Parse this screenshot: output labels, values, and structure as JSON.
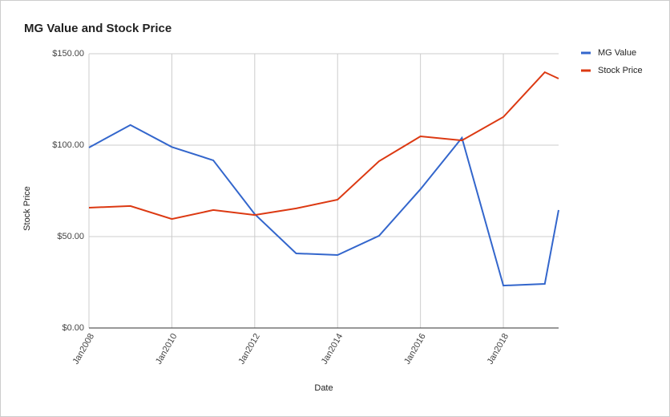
{
  "chart_data": {
    "type": "line",
    "title": "MG Value and Stock Price",
    "x_label": "Date",
    "y_label": "Stock Price",
    "x": [
      "2008-01",
      "2009-01",
      "2010-01",
      "2011-01",
      "2012-01",
      "2013-01",
      "2014-01",
      "2015-01",
      "2016-01",
      "2017-01",
      "2018-01",
      "2019-01",
      "2019-05"
    ],
    "series": [
      {
        "name": "MG Value",
        "color": "#3366cc",
        "values": [
          98.7,
          111,
          99,
          91.7,
          62.3,
          40.8,
          39.9,
          50.4,
          75.9,
          104,
          23.2,
          24.1,
          64.5
        ]
      },
      {
        "name": "Stock Price",
        "color": "#dc3912",
        "values": [
          65.8,
          66.7,
          59.6,
          64.5,
          61.8,
          65.4,
          70.2,
          91.2,
          104.8,
          102.6,
          115.4,
          139.9,
          136.4
        ]
      }
    ],
    "xlim": [
      "2008-01",
      "2019-05"
    ],
    "xticks": [
      {
        "value": "2008-01",
        "label": "Jan2008"
      },
      {
        "value": "2010-01",
        "label": "Jan2010"
      },
      {
        "value": "2012-01",
        "label": "Jan2012"
      },
      {
        "value": "2014-01",
        "label": "Jan2014"
      },
      {
        "value": "2016-01",
        "label": "Jan2016"
      },
      {
        "value": "2018-01",
        "label": "Jan2018"
      }
    ],
    "ylim": [
      0,
      150
    ],
    "yticks": [
      {
        "value": 0,
        "label": "$0.00"
      },
      {
        "value": 50,
        "label": "$50.00"
      },
      {
        "value": 100,
        "label": "$100.00"
      },
      {
        "value": 150,
        "label": "$150.00"
      }
    ],
    "grid": true,
    "legend": "right"
  }
}
